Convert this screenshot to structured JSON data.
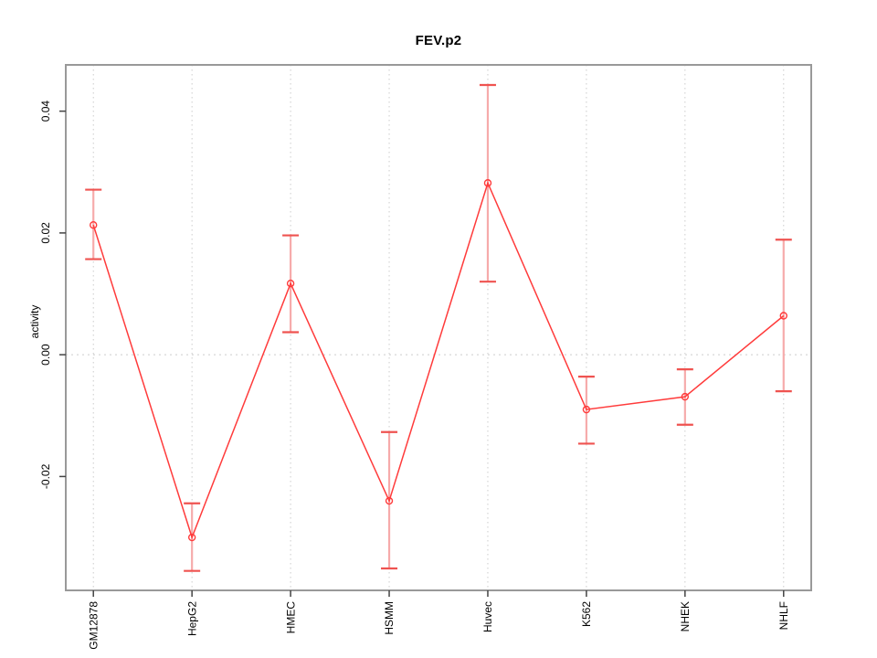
{
  "window": {
    "background": "#ffffff"
  },
  "chart_data": {
    "type": "line",
    "title": "FEV.p2",
    "ylabel": "activity",
    "xlabel": "",
    "legend": "none",
    "marker": "open-circle",
    "categories": [
      "GM12878",
      "HepG2",
      "HMEC",
      "HSMM",
      "Huvec",
      "K562",
      "NHEK",
      "NHLF"
    ],
    "series": [
      {
        "name": "FEV.p2 activity",
        "values": [
          0.0213,
          -0.03,
          0.0117,
          -0.024,
          0.0282,
          -0.009,
          -0.0069,
          0.0064
        ],
        "lower": [
          0.0157,
          -0.0355,
          0.0037,
          -0.0351,
          0.012,
          -0.0146,
          -0.0115,
          -0.006
        ],
        "upper": [
          0.0271,
          -0.0244,
          0.0196,
          -0.0127,
          0.0443,
          -0.0036,
          -0.0024,
          0.0189
        ]
      }
    ],
    "yticks": [
      -0.02,
      0,
      0.02,
      0.04
    ],
    "ytick_labels": [
      "-0.02",
      "0.00",
      "0.02",
      "0.04"
    ],
    "ylim": [
      -0.0387,
      0.0476
    ],
    "xlim": [
      0.72,
      8.28
    ],
    "refline_y": 0,
    "grid": "dotted vertical gridline at each category; dotted horizontal line at y=0",
    "colors": {
      "series": "#ff3b3b",
      "errorbar_stem": "#f6abab",
      "errorbar_cap": "#ef5350",
      "axis_box": "#999999",
      "tick": "#444444",
      "gridline": "#cccccc",
      "text": "#000000"
    }
  }
}
